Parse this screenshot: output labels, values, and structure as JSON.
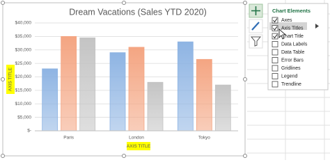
{
  "chart_data": {
    "type": "bar",
    "title": "Dream Vacations (Sales YTD 2020)",
    "x_axis_title": "AXIS TITLE",
    "y_axis_title": "AXIS TITLE",
    "categories": [
      "Paris",
      "London",
      "Tokyo"
    ],
    "series": [
      {
        "color": "#8eb4e3",
        "values": [
          23000,
          29000,
          33000
        ]
      },
      {
        "color": "#f4a582",
        "values": [
          35000,
          31000,
          26500
        ]
      },
      {
        "color": "#c4c4c4",
        "values": [
          34500,
          18000,
          17000
        ]
      }
    ],
    "ylim": [
      0,
      40000
    ],
    "yticks": [
      {
        "value": 0,
        "label": "$-"
      },
      {
        "value": 5000,
        "label": "$5,000"
      },
      {
        "value": 10000,
        "label": "$10,000"
      },
      {
        "value": 15000,
        "label": "$15,000"
      },
      {
        "value": 20000,
        "label": "$20,000"
      },
      {
        "value": 25000,
        "label": "$25,000"
      },
      {
        "value": 30000,
        "label": "$30,000"
      },
      {
        "value": 35000,
        "label": "$35,000"
      },
      {
        "value": 40000,
        "label": "$40,000"
      }
    ],
    "grid": true
  },
  "chart_elements": {
    "title": "Chart Elements",
    "items": [
      {
        "label": "Axes",
        "checked": true
      },
      {
        "label": "Axis Titles",
        "checked": true
      },
      {
        "label": "Chart Title",
        "checked": true
      },
      {
        "label": "Data Labels",
        "checked": false
      },
      {
        "label": "Data Table",
        "checked": false
      },
      {
        "label": "Error Bars",
        "checked": false
      },
      {
        "label": "Gridlines",
        "checked": false
      },
      {
        "label": "Legend",
        "checked": false
      },
      {
        "label": "Trendline",
        "checked": false
      }
    ]
  }
}
